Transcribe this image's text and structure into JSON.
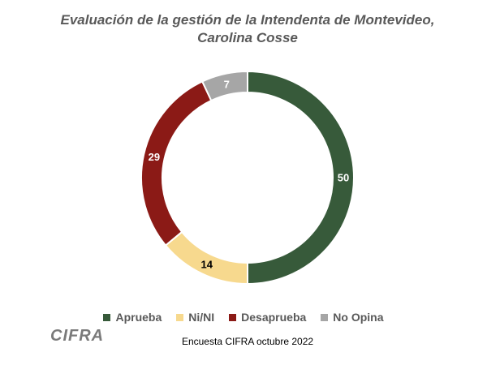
{
  "chart_data": {
    "type": "pie",
    "title": "Evaluación de la gestión de la Intendenta de Montevideo, Carolina Cosse",
    "categories": [
      "Aprueba",
      "Ni/NI",
      "Desaprueba",
      "No Opina"
    ],
    "values": [
      50,
      14,
      29,
      7
    ],
    "colors": [
      "#375a3a",
      "#f7d98e",
      "#8b1a16",
      "#a6a6a6"
    ],
    "label_colors": [
      "#ffffff",
      "#000000",
      "#ffffff",
      "#ffffff"
    ],
    "donut": true,
    "start_angle_deg": 0,
    "direction": "clockwise",
    "legend_position": "bottom"
  },
  "source_note": "Encuesta CIFRA octubre 2022",
  "logo_text": "CIFRA"
}
